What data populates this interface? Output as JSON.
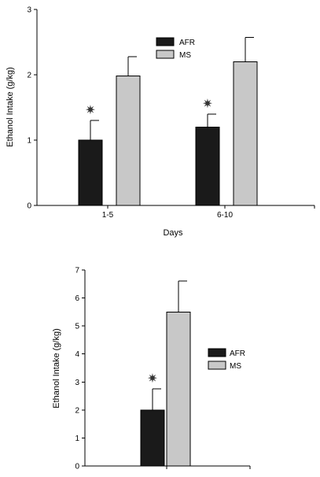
{
  "chart_data": [
    {
      "type": "bar",
      "categories": [
        "1-5",
        "6-10"
      ],
      "series": [
        {
          "name": "AFR",
          "values": [
            1.0,
            1.2
          ],
          "errors": [
            0.3,
            0.2
          ],
          "color": "#1a1a1a",
          "significance": [
            "✷",
            "✷"
          ]
        },
        {
          "name": "MS",
          "values": [
            1.98,
            2.2
          ],
          "errors": [
            0.3,
            0.37
          ],
          "color": "#c8c8c8",
          "significance": [
            "",
            ""
          ]
        }
      ],
      "xlabel": "Days",
      "ylabel": "Ethanol Intake (g/kg)",
      "ylim": [
        0,
        3
      ],
      "yticks": [
        "0",
        "1",
        "2",
        "3"
      ],
      "legend_position": "top-center",
      "grid": false
    },
    {
      "type": "bar",
      "categories": [
        ""
      ],
      "series": [
        {
          "name": "AFR",
          "values": [
            2.0
          ],
          "errors": [
            0.75
          ],
          "color": "#1a1a1a",
          "significance": [
            "✷"
          ]
        },
        {
          "name": "MS",
          "values": [
            5.5
          ],
          "errors": [
            1.1
          ],
          "color": "#c8c8c8",
          "significance": [
            ""
          ]
        }
      ],
      "xlabel": "",
      "ylabel": "Ethanol Intake (g/kg)",
      "ylim": [
        0,
        7
      ],
      "yticks": [
        "0",
        "1",
        "2",
        "3",
        "4",
        "5",
        "6",
        "7"
      ],
      "legend_position": "center-right",
      "grid": false
    }
  ]
}
